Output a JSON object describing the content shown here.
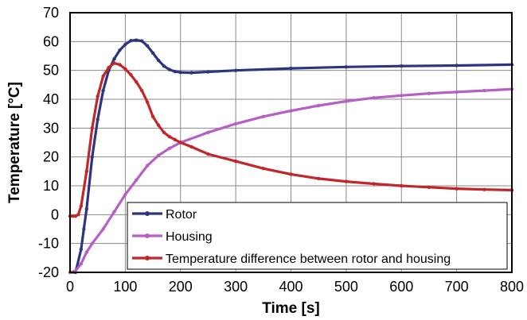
{
  "chart_data": {
    "type": "line",
    "title": "",
    "xlabel": "Time [s]",
    "ylabel": "Temperature [°C]",
    "xlim": [
      0,
      800
    ],
    "ylim": [
      -20,
      70
    ],
    "xticks": [
      0,
      100,
      200,
      300,
      400,
      500,
      600,
      700,
      800
    ],
    "yticks": [
      -20,
      -10,
      0,
      10,
      20,
      30,
      40,
      50,
      60,
      70
    ],
    "grid": true,
    "legend_position": "bottom-right",
    "series": [
      {
        "name": "Rotor",
        "color": "#2e3580",
        "x": [
          0,
          10,
          20,
          25,
          30,
          40,
          50,
          60,
          70,
          80,
          90,
          100,
          110,
          120,
          130,
          140,
          150,
          160,
          170,
          180,
          190,
          200,
          220,
          250,
          300,
          400,
          500,
          600,
          700,
          800
        ],
        "y": [
          -20,
          -20,
          -12,
          -5,
          2,
          20,
          33,
          43,
          50,
          54,
          57,
          59,
          60.3,
          60.5,
          60.2,
          58.5,
          56,
          53.5,
          51.5,
          50.3,
          49.6,
          49.3,
          49.2,
          49.5,
          50,
          50.7,
          51.2,
          51.5,
          51.7,
          52
        ]
      },
      {
        "name": "Housing",
        "color": "#b65fc4",
        "x": [
          0,
          10,
          20,
          30,
          40,
          60,
          80,
          100,
          120,
          140,
          160,
          180,
          200,
          250,
          300,
          350,
          400,
          450,
          500,
          550,
          600,
          650,
          700,
          750,
          800
        ],
        "y": [
          -20,
          -19.5,
          -17,
          -13,
          -10,
          -5,
          1,
          7,
          12,
          17,
          20.5,
          23,
          25,
          28.5,
          31.5,
          34,
          36,
          37.8,
          39.3,
          40.5,
          41.3,
          42,
          42.5,
          43,
          43.5
        ]
      },
      {
        "name": "Temperature difference between rotor and housing",
        "color": "#c2262b",
        "x": [
          0,
          5,
          10,
          15,
          20,
          30,
          40,
          50,
          60,
          70,
          80,
          90,
          100,
          110,
          120,
          130,
          140,
          150,
          160,
          170,
          180,
          190,
          200,
          220,
          250,
          300,
          350,
          400,
          450,
          500,
          550,
          600,
          650,
          700,
          750,
          800
        ],
        "y": [
          -0.5,
          -0.5,
          -0.5,
          0,
          3,
          15,
          30,
          41,
          48,
          51,
          52.5,
          52,
          50.5,
          48.5,
          46,
          43,
          39,
          34,
          31,
          28.5,
          27,
          26,
          25,
          23.5,
          21,
          18.5,
          16,
          14,
          12.5,
          11.5,
          10.7,
          10,
          9.5,
          9,
          8.7,
          8.5
        ]
      }
    ]
  }
}
